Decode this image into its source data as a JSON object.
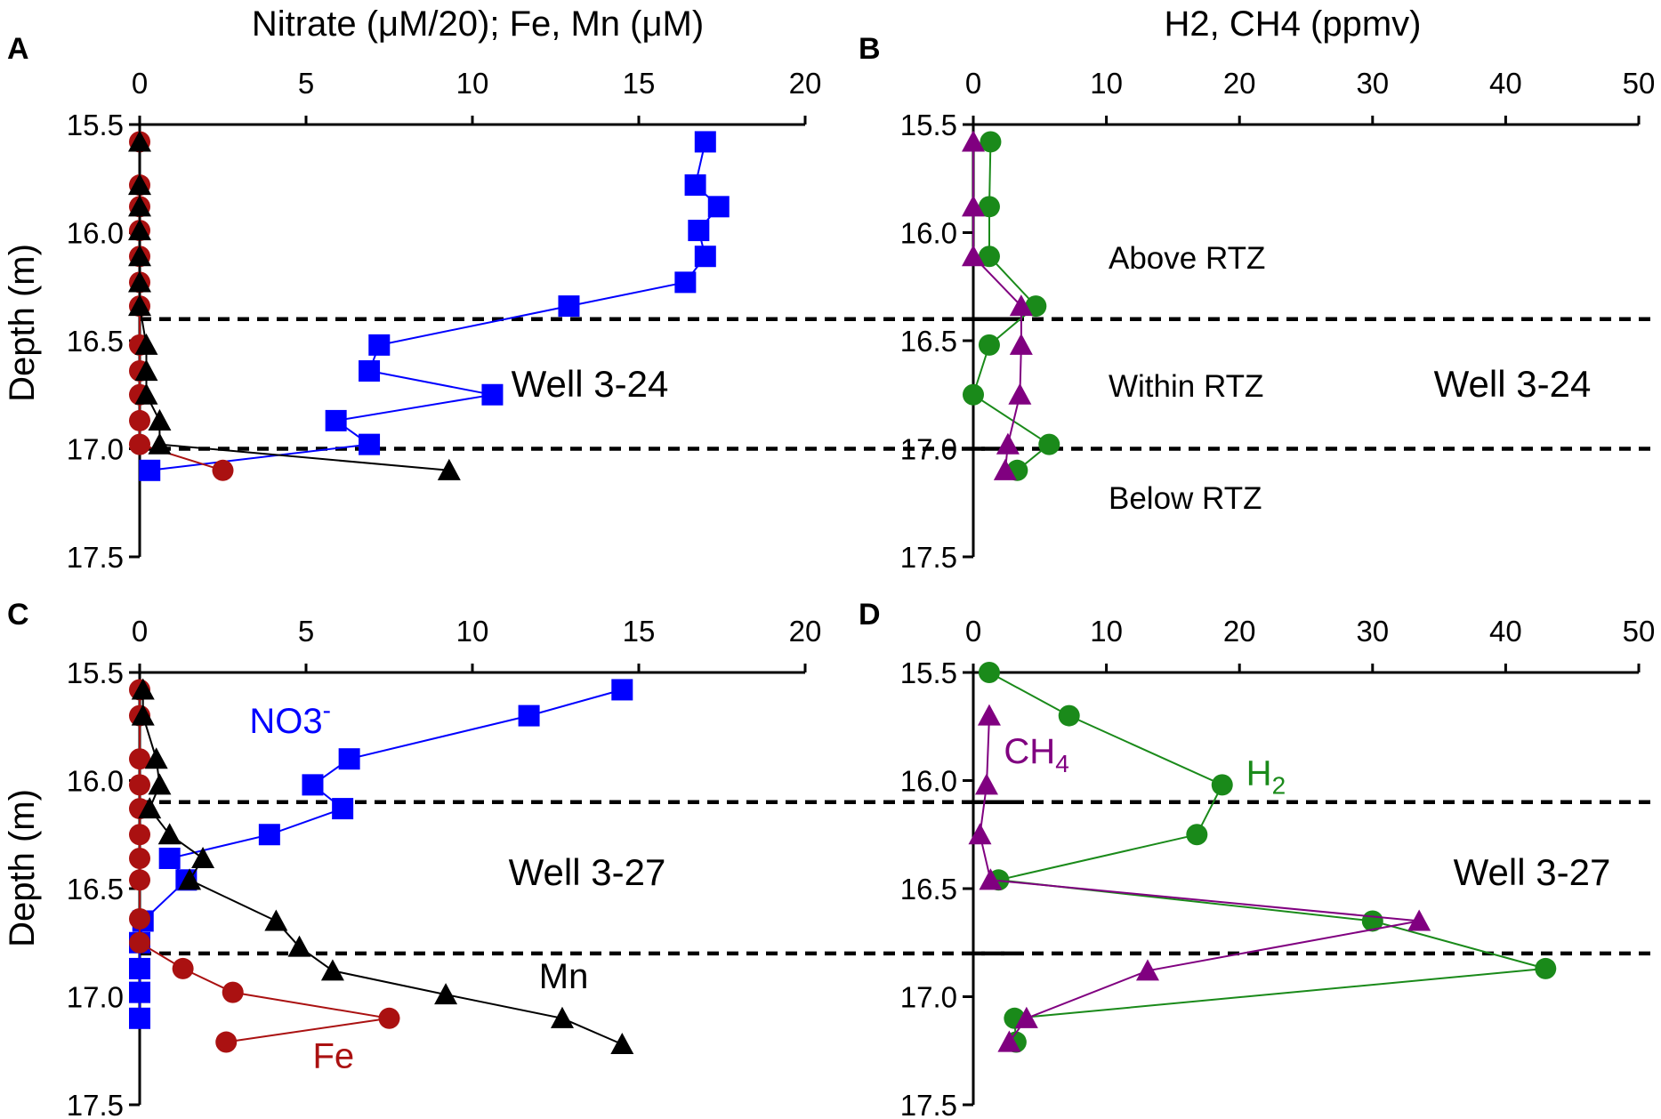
{
  "colors": {
    "nitrate": "#0000ff",
    "fe": "#aa1111",
    "mn": "#000000",
    "h2": "#1a8a1a",
    "ch4": "#800080"
  },
  "chart_data": [
    {
      "panel": "A",
      "type": "scatter",
      "title": "Well 3-24",
      "xlabel": "Nitrate (μM/20); Fe, Mn (μM)",
      "ylabel": "Depth (m)",
      "xlim": [
        0,
        20
      ],
      "ylim": [
        17.5,
        15.5
      ],
      "xticks": [
        "0",
        "5",
        "10",
        "15",
        "20"
      ],
      "yticks": [
        "15.5",
        "16.0",
        "16.5",
        "17.0",
        "17.5"
      ],
      "rtz_depths": [
        16.4,
        17.0
      ],
      "zone_labels": [],
      "series": [
        {
          "name": "NO3-",
          "color_key": "nitrate",
          "marker": "square",
          "points": [
            [
              17.0,
              15.58
            ],
            [
              16.7,
              15.78
            ],
            [
              17.4,
              15.88
            ],
            [
              16.8,
              15.99
            ],
            [
              17.0,
              16.11
            ],
            [
              16.4,
              16.23
            ],
            [
              12.9,
              16.34
            ],
            [
              7.2,
              16.52
            ],
            [
              6.9,
              16.64
            ],
            [
              10.6,
              16.75
            ],
            [
              5.9,
              16.87
            ],
            [
              6.9,
              16.98
            ],
            [
              0.3,
              17.1
            ]
          ]
        },
        {
          "name": "Fe",
          "color_key": "fe",
          "marker": "circle",
          "points": [
            [
              0,
              15.58
            ],
            [
              0,
              15.78
            ],
            [
              0,
              15.88
            ],
            [
              0,
              15.99
            ],
            [
              0,
              16.11
            ],
            [
              0,
              16.23
            ],
            [
              0,
              16.34
            ],
            [
              0,
              16.52
            ],
            [
              0,
              16.64
            ],
            [
              0,
              16.75
            ],
            [
              0,
              16.87
            ],
            [
              0,
              16.98
            ],
            [
              2.5,
              17.1
            ]
          ]
        },
        {
          "name": "Mn",
          "color_key": "mn",
          "marker": "triangle",
          "points": [
            [
              0,
              15.58
            ],
            [
              0,
              15.78
            ],
            [
              0,
              15.88
            ],
            [
              0,
              15.99
            ],
            [
              0,
              16.11
            ],
            [
              0,
              16.23
            ],
            [
              0,
              16.34
            ],
            [
              0.2,
              16.52
            ],
            [
              0.2,
              16.64
            ],
            [
              0.2,
              16.75
            ],
            [
              0.6,
              16.87
            ],
            [
              0.6,
              16.98
            ],
            [
              9.3,
              17.1
            ]
          ]
        }
      ]
    },
    {
      "panel": "B",
      "type": "scatter",
      "title": "Well 3-24",
      "xlabel": "H2, CH4 (ppmv)",
      "ylabel": "",
      "xlim": [
        0,
        50
      ],
      "ylim": [
        17.5,
        15.5
      ],
      "xticks": [
        "0",
        "10",
        "20",
        "30",
        "40",
        "50"
      ],
      "yticks": [
        "15.5",
        "16.0",
        "16.5",
        "17.0",
        "17.5"
      ],
      "rtz_depths": [
        16.4,
        17.0
      ],
      "zone_labels": [
        "Above RTZ",
        "Within RTZ",
        "Below RTZ"
      ],
      "series": [
        {
          "name": "H2",
          "color_key": "h2",
          "marker": "circle",
          "points": [
            [
              1.3,
              15.58
            ],
            [
              1.2,
              15.88
            ],
            [
              1.2,
              16.11
            ],
            [
              4.7,
              16.34
            ],
            [
              1.2,
              16.52
            ],
            [
              0,
              16.75
            ],
            [
              5.7,
              16.98
            ],
            [
              3.3,
              17.1
            ]
          ]
        },
        {
          "name": "CH4",
          "color_key": "ch4",
          "marker": "triangle",
          "points": [
            [
              0,
              15.58
            ],
            [
              0,
              15.88
            ],
            [
              0,
              16.11
            ],
            [
              3.6,
              16.34
            ],
            [
              3.6,
              16.52
            ],
            [
              3.5,
              16.75
            ],
            [
              2.6,
              16.98
            ],
            [
              2.4,
              17.1
            ]
          ]
        }
      ]
    },
    {
      "panel": "C",
      "type": "scatter",
      "title": "Well 3-27",
      "xlabel": "",
      "ylabel": "Depth (m)",
      "xlim": [
        0,
        20
      ],
      "ylim": [
        17.5,
        15.5
      ],
      "xticks": [
        "0",
        "5",
        "10",
        "15",
        "20"
      ],
      "yticks": [
        "15.5",
        "16.0",
        "16.5",
        "17.0",
        "17.5"
      ],
      "rtz_depths": [
        16.1,
        16.8
      ],
      "series_labels": [
        {
          "text": "NO3",
          "sup": "-",
          "color_key": "nitrate",
          "at": [
            3.3,
            15.78
          ]
        },
        {
          "text": "Fe",
          "color_key": "fe",
          "at": [
            5.2,
            17.33
          ]
        },
        {
          "text": "Mn",
          "color_key": "mn",
          "at": [
            12.0,
            16.96
          ]
        }
      ],
      "series": [
        {
          "name": "NO3-",
          "color_key": "nitrate",
          "marker": "square",
          "points": [
            [
              14.5,
              15.58
            ],
            [
              11.7,
              15.7
            ],
            [
              6.3,
              15.9
            ],
            [
              5.2,
              16.02
            ],
            [
              6.1,
              16.13
            ],
            [
              3.9,
              16.25
            ],
            [
              0.9,
              16.36
            ],
            [
              1.4,
              16.46
            ],
            [
              0.1,
              16.65
            ],
            [
              0,
              16.75
            ],
            [
              0,
              16.87
            ],
            [
              0,
              16.98
            ],
            [
              0,
              17.1
            ]
          ]
        },
        {
          "name": "Fe",
          "color_key": "fe",
          "marker": "circle",
          "points": [
            [
              0,
              15.58
            ],
            [
              0,
              15.7
            ],
            [
              0,
              15.9
            ],
            [
              0,
              16.02
            ],
            [
              0,
              16.13
            ],
            [
              0,
              16.25
            ],
            [
              0,
              16.36
            ],
            [
              0,
              16.46
            ],
            [
              0,
              16.64
            ],
            [
              0,
              16.75
            ],
            [
              1.3,
              16.87
            ],
            [
              2.8,
              16.98
            ],
            [
              7.5,
              17.1
            ],
            [
              2.6,
              17.21
            ]
          ]
        },
        {
          "name": "Mn",
          "color_key": "mn",
          "marker": "triangle",
          "points": [
            [
              0.1,
              15.58
            ],
            [
              0.1,
              15.7
            ],
            [
              0.5,
              15.9
            ],
            [
              0.6,
              16.02
            ],
            [
              0.3,
              16.13
            ],
            [
              0.9,
              16.25
            ],
            [
              1.9,
              16.36
            ],
            [
              1.5,
              16.46
            ],
            [
              4.1,
              16.65
            ],
            [
              4.8,
              16.77
            ],
            [
              5.8,
              16.88
            ],
            [
              9.2,
              16.99
            ],
            [
              12.7,
              17.1
            ],
            [
              14.5,
              17.22
            ]
          ]
        }
      ]
    },
    {
      "panel": "D",
      "type": "scatter",
      "title": "Well 3-27",
      "xlabel": "",
      "ylabel": "",
      "xlim": [
        0,
        50
      ],
      "ylim": [
        17.5,
        15.5
      ],
      "xticks": [
        "0",
        "10",
        "20",
        "30",
        "40",
        "50"
      ],
      "yticks": [
        "15.5",
        "16.0",
        "16.5",
        "17.0",
        "17.5"
      ],
      "rtz_depths": [
        16.1,
        16.8
      ],
      "series_labels": [
        {
          "text": "CH",
          "sub": "4",
          "color_key": "ch4",
          "at": [
            2.3,
            15.92
          ]
        },
        {
          "text": "H",
          "sub": "2",
          "color_key": "h2",
          "at": [
            20.5,
            16.02
          ]
        }
      ],
      "series": [
        {
          "name": "H2",
          "color_key": "h2",
          "marker": "circle",
          "points": [
            [
              1.2,
              15.5
            ],
            [
              7.2,
              15.7
            ],
            [
              18.7,
              16.02
            ],
            [
              16.8,
              16.25
            ],
            [
              1.9,
              16.46
            ],
            [
              30.0,
              16.65
            ],
            [
              43.0,
              16.87
            ],
            [
              3.1,
              17.1
            ],
            [
              3.2,
              17.21
            ]
          ]
        },
        {
          "name": "CH4",
          "color_key": "ch4",
          "marker": "triangle",
          "points": [
            [
              1.2,
              15.7
            ],
            [
              1.0,
              16.02
            ],
            [
              0.5,
              16.25
            ],
            [
              1.3,
              16.46
            ],
            [
              33.5,
              16.65
            ],
            [
              13.1,
              16.88
            ],
            [
              4.0,
              17.1
            ],
            [
              2.7,
              17.21
            ]
          ]
        }
      ]
    }
  ]
}
